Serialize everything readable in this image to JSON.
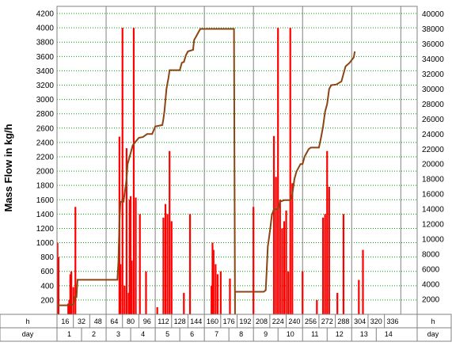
{
  "chart_data": {
    "type": "bar",
    "ylabel": "Mass Flow in kg/h",
    "y_left_ticks": [
      200,
      400,
      600,
      800,
      1000,
      1200,
      1400,
      1600,
      1800,
      2000,
      2200,
      2400,
      2600,
      2800,
      3000,
      3200,
      3400,
      3600,
      3800,
      4000,
      4200
    ],
    "y_left_range": [
      0,
      4300
    ],
    "y_right_ticks": [
      2000,
      4000,
      6000,
      8000,
      10000,
      12000,
      14000,
      16000,
      18000,
      20000,
      22000,
      24000,
      26000,
      28000,
      30000,
      32000,
      34000,
      36000,
      38000,
      40000
    ],
    "y_right_range": [
      0,
      41000
    ],
    "x_range_hours": [
      0,
      352
    ],
    "hour_row_label": "h",
    "hour_ticks": [
      "16",
      "32",
      "48",
      "64",
      "80",
      "96",
      "112",
      "128",
      "144",
      "160",
      "176",
      "192",
      "208",
      "224",
      "240",
      "256",
      "272",
      "288",
      "304",
      "320",
      "336"
    ],
    "day_row_label": "day",
    "day_ticks": [
      "1",
      "2",
      "3",
      "4",
      "5",
      "6",
      "7",
      "8",
      "9",
      "10",
      "11",
      "12",
      "13",
      "14"
    ],
    "grid": {
      "horizontal": "dotted green",
      "vertical": "day boundaries"
    },
    "colors": {
      "bars": "#ff0000",
      "cumulative": "#8b4513",
      "grid": "#00a000",
      "frame": "#808080"
    },
    "series": [
      {
        "role": "mass flow bars (left axis)",
        "points": [
          [
            0.5,
            1000
          ],
          [
            1.5,
            800
          ],
          [
            11,
            150
          ],
          [
            12,
            200
          ],
          [
            13,
            560
          ],
          [
            14,
            600
          ],
          [
            16,
            380
          ],
          [
            18,
            1500
          ],
          [
            61,
            2480
          ],
          [
            62,
            700
          ],
          [
            64,
            4000
          ],
          [
            66,
            400
          ],
          [
            68,
            2320
          ],
          [
            70,
            300
          ],
          [
            71,
            1600
          ],
          [
            72,
            1650
          ],
          [
            73,
            750
          ],
          [
            75,
            4000
          ],
          [
            77,
            1630
          ],
          [
            81,
            1400
          ],
          [
            87,
            600
          ],
          [
            98,
            100
          ],
          [
            104,
            1350
          ],
          [
            106,
            1540
          ],
          [
            108,
            1400
          ],
          [
            110,
            2280
          ],
          [
            112,
            1300
          ],
          [
            124,
            300
          ],
          [
            130,
            1400
          ],
          [
            151,
            400
          ],
          [
            152,
            1000
          ],
          [
            153,
            900
          ],
          [
            155,
            700
          ],
          [
            157,
            560
          ],
          [
            160,
            600
          ],
          [
            169,
            500
          ],
          [
            192,
            1500
          ],
          [
            212,
            2490
          ],
          [
            214,
            1920
          ],
          [
            216,
            4000
          ],
          [
            218,
            1600
          ],
          [
            220,
            1200
          ],
          [
            222,
            1300
          ],
          [
            224,
            1450
          ],
          [
            226,
            600
          ],
          [
            228,
            4000
          ],
          [
            230,
            1830
          ],
          [
            240,
            600
          ],
          [
            254,
            200
          ],
          [
            260,
            1350
          ],
          [
            262,
            1400
          ],
          [
            264,
            2280
          ],
          [
            266,
            1780
          ],
          [
            274,
            300
          ],
          [
            280,
            1400
          ],
          [
            295,
            480
          ],
          [
            299,
            900
          ]
        ]
      },
      {
        "role": "cumulative mass (right axis)",
        "points": [
          [
            0,
            1200
          ],
          [
            10,
            1200
          ],
          [
            11,
            1300
          ],
          [
            16,
            1300
          ],
          [
            17,
            2300
          ],
          [
            19,
            2300
          ],
          [
            20,
            4600
          ],
          [
            59,
            4600
          ],
          [
            60,
            7000
          ],
          [
            61,
            12000
          ],
          [
            62,
            15000
          ],
          [
            65,
            15000
          ],
          [
            66,
            16000
          ],
          [
            67,
            17000
          ],
          [
            68,
            18000
          ],
          [
            69,
            20000
          ],
          [
            71,
            21000
          ],
          [
            74,
            22500
          ],
          [
            77,
            23000
          ],
          [
            80,
            23500
          ],
          [
            84,
            23600
          ],
          [
            88,
            24000
          ],
          [
            93,
            24000
          ],
          [
            96,
            25000
          ],
          [
            103,
            25200
          ],
          [
            104,
            26000
          ],
          [
            105,
            27000
          ],
          [
            106,
            28500
          ],
          [
            107,
            30000
          ],
          [
            108,
            30800
          ],
          [
            109,
            31500
          ],
          [
            110,
            32500
          ],
          [
            120,
            32500
          ],
          [
            122,
            33500
          ],
          [
            124,
            33600
          ],
          [
            126,
            34500
          ],
          [
            128,
            35000
          ],
          [
            133,
            35200
          ],
          [
            134,
            36500
          ],
          [
            136,
            37000
          ],
          [
            140,
            38000
          ],
          [
            173,
            38000
          ],
          [
            174,
            0
          ],
          [
            174,
            3000
          ],
          [
            180,
            3000
          ],
          [
            202,
            3000
          ],
          [
            204,
            3200
          ],
          [
            205,
            6000
          ],
          [
            206,
            9000
          ],
          [
            208,
            11000
          ],
          [
            210,
            13200
          ],
          [
            212,
            14000
          ],
          [
            216,
            14000
          ],
          [
            218,
            15000
          ],
          [
            222,
            15200
          ],
          [
            228,
            15200
          ],
          [
            230,
            16000
          ],
          [
            232,
            18000
          ],
          [
            234,
            19000
          ],
          [
            238,
            20000
          ],
          [
            240,
            20000
          ],
          [
            242,
            21000
          ],
          [
            244,
            21500
          ],
          [
            246,
            22000
          ],
          [
            248,
            22200
          ],
          [
            256,
            22200
          ],
          [
            258,
            23500
          ],
          [
            260,
            25000
          ],
          [
            262,
            27000
          ],
          [
            264,
            28000
          ],
          [
            266,
            30000
          ],
          [
            268,
            30500
          ],
          [
            273,
            30600
          ],
          [
            278,
            31000
          ],
          [
            280,
            32000
          ],
          [
            282,
            33000
          ],
          [
            286,
            33500
          ],
          [
            290,
            34200
          ],
          [
            291,
            35000
          ]
        ]
      }
    ]
  }
}
